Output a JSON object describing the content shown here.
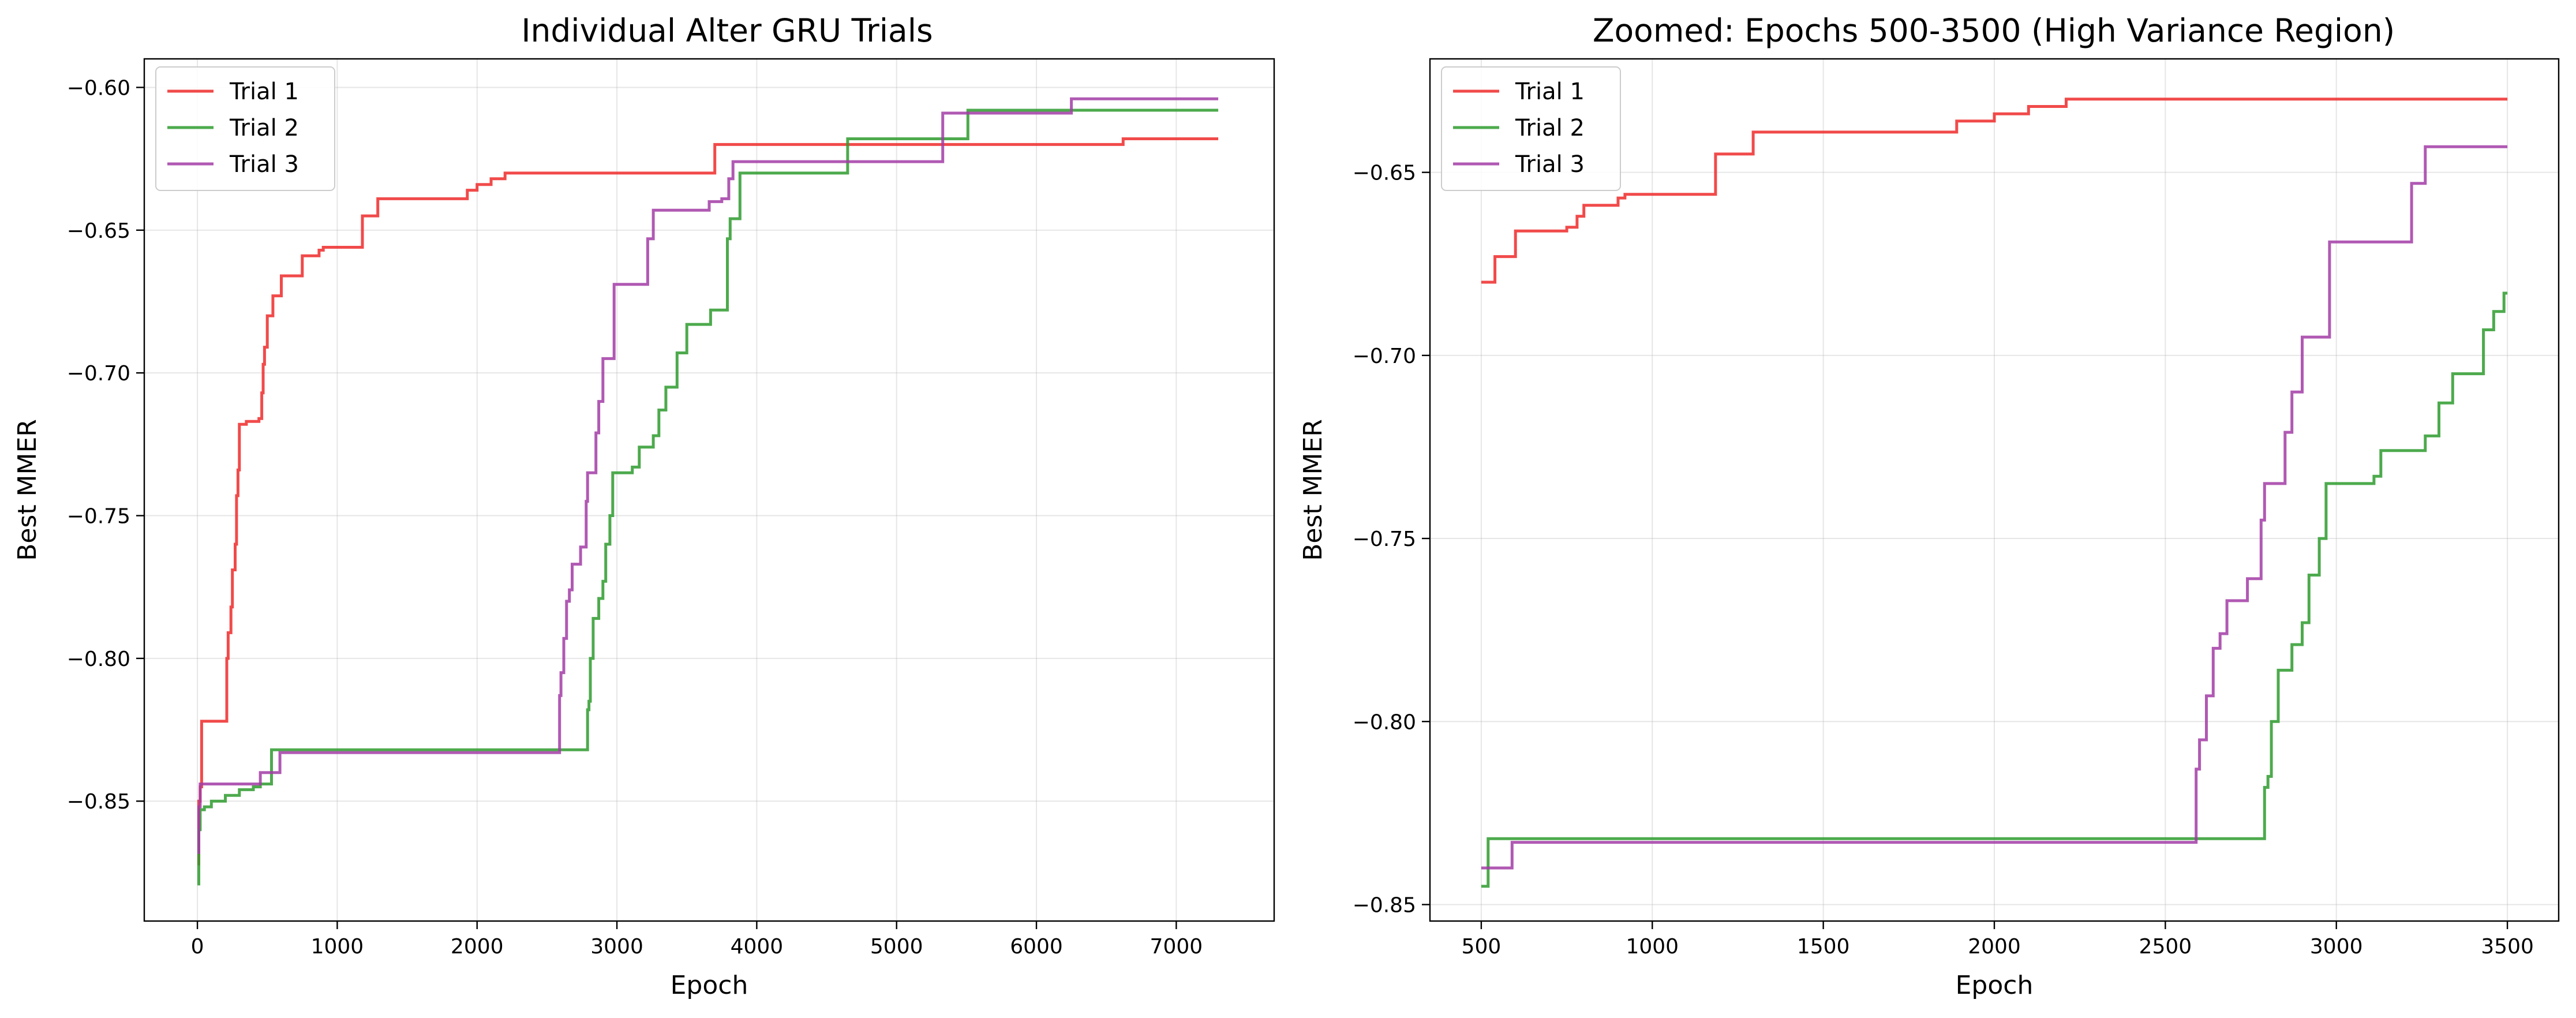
{
  "chart_data": [
    {
      "type": "line",
      "title": "Individual Alter GRU Trials",
      "xlabel": "Epoch",
      "ylabel": "Best MMER",
      "xlim": [
        -380,
        7700
      ],
      "ylim": [
        -0.892,
        -0.59
      ],
      "xticks": [
        0,
        1000,
        2000,
        3000,
        4000,
        5000,
        6000,
        7000
      ],
      "xtick_labels": [
        "0",
        "1000",
        "2000",
        "3000",
        "4000",
        "5000",
        "6000",
        "7000"
      ],
      "yticks": [
        -0.85,
        -0.8,
        -0.75,
        -0.7,
        -0.65,
        -0.6
      ],
      "ytick_labels": [
        "−0.85",
        "−0.80",
        "−0.75",
        "−0.70",
        "−0.65",
        "−0.60"
      ],
      "grid": true,
      "legend_position": "upper-left",
      "step": true,
      "series": [
        {
          "name": "Trial 1",
          "color": "#ee2a2a",
          "points": [
            [
              0,
              -0.872
            ],
            [
              10,
              -0.85
            ],
            [
              20,
              -0.845
            ],
            [
              30,
              -0.822
            ],
            [
              200,
              -0.822
            ],
            [
              210,
              -0.8
            ],
            [
              220,
              -0.791
            ],
            [
              240,
              -0.782
            ],
            [
              250,
              -0.769
            ],
            [
              270,
              -0.76
            ],
            [
              280,
              -0.743
            ],
            [
              290,
              -0.734
            ],
            [
              300,
              -0.718
            ],
            [
              350,
              -0.717
            ],
            [
              400,
              -0.717
            ],
            [
              440,
              -0.716
            ],
            [
              460,
              -0.707
            ],
            [
              470,
              -0.697
            ],
            [
              480,
              -0.691
            ],
            [
              500,
              -0.68
            ],
            [
              540,
              -0.673
            ],
            [
              600,
              -0.666
            ],
            [
              700,
              -0.666
            ],
            [
              750,
              -0.659
            ],
            [
              850,
              -0.659
            ],
            [
              870,
              -0.657
            ],
            [
              900,
              -0.656
            ],
            [
              1000,
              -0.656
            ],
            [
              1180,
              -0.645
            ],
            [
              1290,
              -0.639
            ],
            [
              1500,
              -0.639
            ],
            [
              1880,
              -0.639
            ],
            [
              1930,
              -0.636
            ],
            [
              2000,
              -0.634
            ],
            [
              2100,
              -0.632
            ],
            [
              2200,
              -0.63
            ],
            [
              3680,
              -0.63
            ],
            [
              3700,
              -0.62
            ],
            [
              6600,
              -0.62
            ],
            [
              6620,
              -0.618
            ],
            [
              7300,
              -0.618
            ]
          ]
        },
        {
          "name": "Trial 2",
          "color": "#2e9b2e",
          "points": [
            [
              0,
              -0.879
            ],
            [
              10,
              -0.86
            ],
            [
              20,
              -0.853
            ],
            [
              50,
              -0.852
            ],
            [
              100,
              -0.85
            ],
            [
              200,
              -0.848
            ],
            [
              300,
              -0.846
            ],
            [
              400,
              -0.845
            ],
            [
              450,
              -0.844
            ],
            [
              520,
              -0.844
            ],
            [
              530,
              -0.832
            ],
            [
              2780,
              -0.832
            ],
            [
              2790,
              -0.818
            ],
            [
              2800,
              -0.815
            ],
            [
              2810,
              -0.8
            ],
            [
              2830,
              -0.786
            ],
            [
              2860,
              -0.786
            ],
            [
              2870,
              -0.779
            ],
            [
              2900,
              -0.773
            ],
            [
              2920,
              -0.76
            ],
            [
              2950,
              -0.75
            ],
            [
              2970,
              -0.735
            ],
            [
              3100,
              -0.735
            ],
            [
              3110,
              -0.733
            ],
            [
              3160,
              -0.726
            ],
            [
              3250,
              -0.726
            ],
            [
              3260,
              -0.722
            ],
            [
              3300,
              -0.713
            ],
            [
              3350,
              -0.705
            ],
            [
              3420,
              -0.705
            ],
            [
              3430,
              -0.693
            ],
            [
              3500,
              -0.683
            ],
            [
              3650,
              -0.683
            ],
            [
              3670,
              -0.678
            ],
            [
              3780,
              -0.678
            ],
            [
              3790,
              -0.653
            ],
            [
              3810,
              -0.646
            ],
            [
              3870,
              -0.646
            ],
            [
              3880,
              -0.63
            ],
            [
              4640,
              -0.63
            ],
            [
              4650,
              -0.618
            ],
            [
              5500,
              -0.618
            ],
            [
              5510,
              -0.608
            ],
            [
              7300,
              -0.608
            ]
          ]
        },
        {
          "name": "Trial 3",
          "color": "#a23ca6",
          "points": [
            [
              0,
              -0.868
            ],
            [
              10,
              -0.852
            ],
            [
              20,
              -0.844
            ],
            [
              440,
              -0.844
            ],
            [
              450,
              -0.84
            ],
            [
              580,
              -0.84
            ],
            [
              590,
              -0.833
            ],
            [
              2580,
              -0.833
            ],
            [
              2590,
              -0.813
            ],
            [
              2600,
              -0.805
            ],
            [
              2620,
              -0.793
            ],
            [
              2640,
              -0.78
            ],
            [
              2660,
              -0.776
            ],
            [
              2680,
              -0.767
            ],
            [
              2730,
              -0.767
            ],
            [
              2740,
              -0.761
            ],
            [
              2780,
              -0.745
            ],
            [
              2790,
              -0.735
            ],
            [
              2840,
              -0.735
            ],
            [
              2850,
              -0.721
            ],
            [
              2870,
              -0.71
            ],
            [
              2900,
              -0.695
            ],
            [
              2970,
              -0.695
            ],
            [
              2980,
              -0.669
            ],
            [
              3200,
              -0.669
            ],
            [
              3220,
              -0.653
            ],
            [
              3260,
              -0.643
            ],
            [
              3650,
              -0.643
            ],
            [
              3660,
              -0.64
            ],
            [
              3750,
              -0.639
            ],
            [
              3800,
              -0.632
            ],
            [
              3830,
              -0.626
            ],
            [
              5320,
              -0.626
            ],
            [
              5330,
              -0.609
            ],
            [
              6240,
              -0.609
            ],
            [
              6250,
              -0.604
            ],
            [
              7300,
              -0.604
            ]
          ]
        }
      ]
    },
    {
      "type": "line",
      "title": "Zoomed: Epochs 500-3500 (High Variance Region)",
      "xlabel": "Epoch",
      "ylabel": "Best MMER",
      "xlim": [
        350,
        3650
      ],
      "ylim": [
        -0.8545,
        -0.619
      ],
      "xticks": [
        500,
        1000,
        1500,
        2000,
        2500,
        3000,
        3500
      ],
      "xtick_labels": [
        "500",
        "1000",
        "1500",
        "2000",
        "2500",
        "3000",
        "3500"
      ],
      "yticks": [
        -0.85,
        -0.8,
        -0.75,
        -0.7,
        -0.65
      ],
      "ytick_labels": [
        "−0.85",
        "−0.80",
        "−0.75",
        "−0.70",
        "−0.65"
      ],
      "grid": true,
      "legend_position": "upper-left",
      "step": true,
      "series": [
        {
          "name": "Trial 1",
          "color": "#ee2a2a",
          "points": [
            [
              500,
              -0.68
            ],
            [
              540,
              -0.673
            ],
            [
              600,
              -0.666
            ],
            [
              700,
              -0.666
            ],
            [
              750,
              -0.665
            ],
            [
              780,
              -0.662
            ],
            [
              800,
              -0.659
            ],
            [
              880,
              -0.659
            ],
            [
              900,
              -0.657
            ],
            [
              920,
              -0.656
            ],
            [
              1180,
              -0.656
            ],
            [
              1185,
              -0.645
            ],
            [
              1290,
              -0.645
            ],
            [
              1295,
              -0.639
            ],
            [
              1880,
              -0.639
            ],
            [
              1890,
              -0.636
            ],
            [
              2000,
              -0.634
            ],
            [
              2100,
              -0.632
            ],
            [
              2210,
              -0.63
            ],
            [
              3500,
              -0.63
            ]
          ]
        },
        {
          "name": "Trial 2",
          "color": "#2e9b2e",
          "points": [
            [
              500,
              -0.845
            ],
            [
              520,
              -0.832
            ],
            [
              2780,
              -0.832
            ],
            [
              2790,
              -0.818
            ],
            [
              2800,
              -0.815
            ],
            [
              2810,
              -0.8
            ],
            [
              2830,
              -0.786
            ],
            [
              2860,
              -0.786
            ],
            [
              2870,
              -0.779
            ],
            [
              2900,
              -0.773
            ],
            [
              2920,
              -0.76
            ],
            [
              2950,
              -0.75
            ],
            [
              2970,
              -0.735
            ],
            [
              3100,
              -0.735
            ],
            [
              3110,
              -0.733
            ],
            [
              3130,
              -0.726
            ],
            [
              3250,
              -0.726
            ],
            [
              3260,
              -0.722
            ],
            [
              3300,
              -0.713
            ],
            [
              3340,
              -0.705
            ],
            [
              3420,
              -0.705
            ],
            [
              3430,
              -0.693
            ],
            [
              3460,
              -0.688
            ],
            [
              3490,
              -0.683
            ],
            [
              3500,
              -0.683
            ]
          ]
        },
        {
          "name": "Trial 3",
          "color": "#a23ca6",
          "points": [
            [
              500,
              -0.84
            ],
            [
              580,
              -0.84
            ],
            [
              590,
              -0.833
            ],
            [
              2580,
              -0.833
            ],
            [
              2590,
              -0.813
            ],
            [
              2600,
              -0.805
            ],
            [
              2620,
              -0.793
            ],
            [
              2640,
              -0.78
            ],
            [
              2660,
              -0.776
            ],
            [
              2680,
              -0.767
            ],
            [
              2730,
              -0.767
            ],
            [
              2740,
              -0.761
            ],
            [
              2780,
              -0.745
            ],
            [
              2790,
              -0.735
            ],
            [
              2840,
              -0.735
            ],
            [
              2850,
              -0.721
            ],
            [
              2870,
              -0.71
            ],
            [
              2900,
              -0.695
            ],
            [
              2970,
              -0.695
            ],
            [
              2980,
              -0.669
            ],
            [
              3200,
              -0.669
            ],
            [
              3220,
              -0.653
            ],
            [
              3260,
              -0.643
            ],
            [
              3500,
              -0.643
            ]
          ]
        }
      ]
    }
  ]
}
